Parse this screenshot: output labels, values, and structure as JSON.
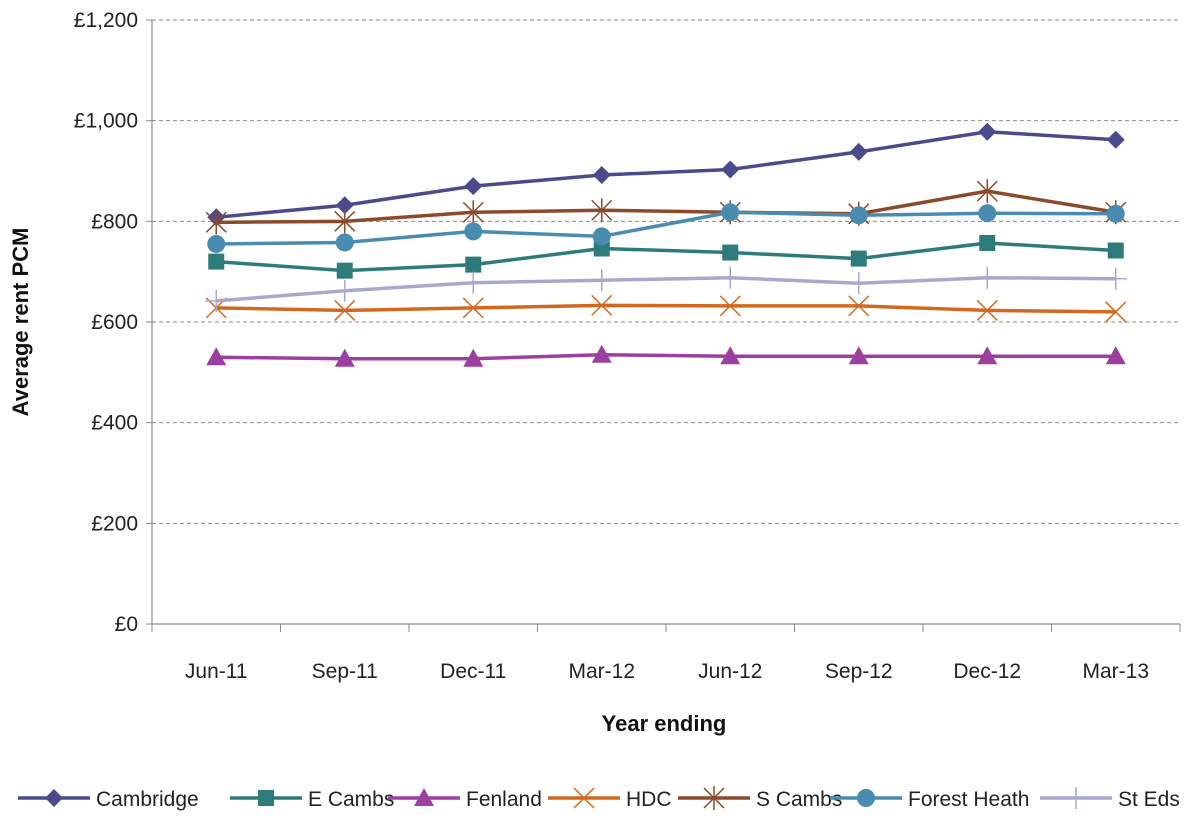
{
  "chart_data": {
    "type": "line",
    "title": "",
    "xlabel": "Year ending",
    "ylabel": "Average rent PCM",
    "categories": [
      "Jun-11",
      "Sep-11",
      "Dec-11",
      "Mar-12",
      "Jun-12",
      "Sep-12",
      "Dec-12",
      "Mar-13"
    ],
    "ylim": [
      0,
      1200
    ],
    "yticks": [
      0,
      200,
      400,
      600,
      800,
      1000,
      1200
    ],
    "ytick_labels": [
      "£0",
      "£200",
      "£400",
      "£600",
      "£800",
      "£1,000",
      "£1,200"
    ],
    "grid": "horizontal-dashed",
    "legend_position": "bottom",
    "series": [
      {
        "name": "Cambridge",
        "color": "#4a4a8c",
        "marker": "diamond",
        "values": [
          808,
          832,
          870,
          892,
          903,
          938,
          978,
          962
        ]
      },
      {
        "name": "E Cambs",
        "color": "#2e7b7b",
        "marker": "square",
        "values": [
          720,
          702,
          714,
          746,
          738,
          726,
          757,
          742
        ]
      },
      {
        "name": "Fenland",
        "color": "#9b3fa0",
        "marker": "triangle",
        "values": [
          530,
          527,
          527,
          535,
          532,
          532,
          532,
          532
        ]
      },
      {
        "name": "HDC",
        "color": "#d2691e",
        "marker": "x",
        "values": [
          628,
          623,
          628,
          633,
          632,
          632,
          623,
          620
        ]
      },
      {
        "name": "S Cambs",
        "color": "#8b4a2b",
        "marker": "star",
        "values": [
          798,
          800,
          818,
          822,
          818,
          815,
          860,
          818
        ]
      },
      {
        "name": "Forest Heath",
        "color": "#4a8bb0",
        "marker": "circle",
        "values": [
          755,
          758,
          780,
          770,
          818,
          812,
          816,
          815
        ]
      },
      {
        "name": "St Eds",
        "color": "#a8a8cc",
        "marker": "plus",
        "values": [
          642,
          662,
          678,
          683,
          688,
          677,
          688,
          686
        ]
      }
    ]
  }
}
